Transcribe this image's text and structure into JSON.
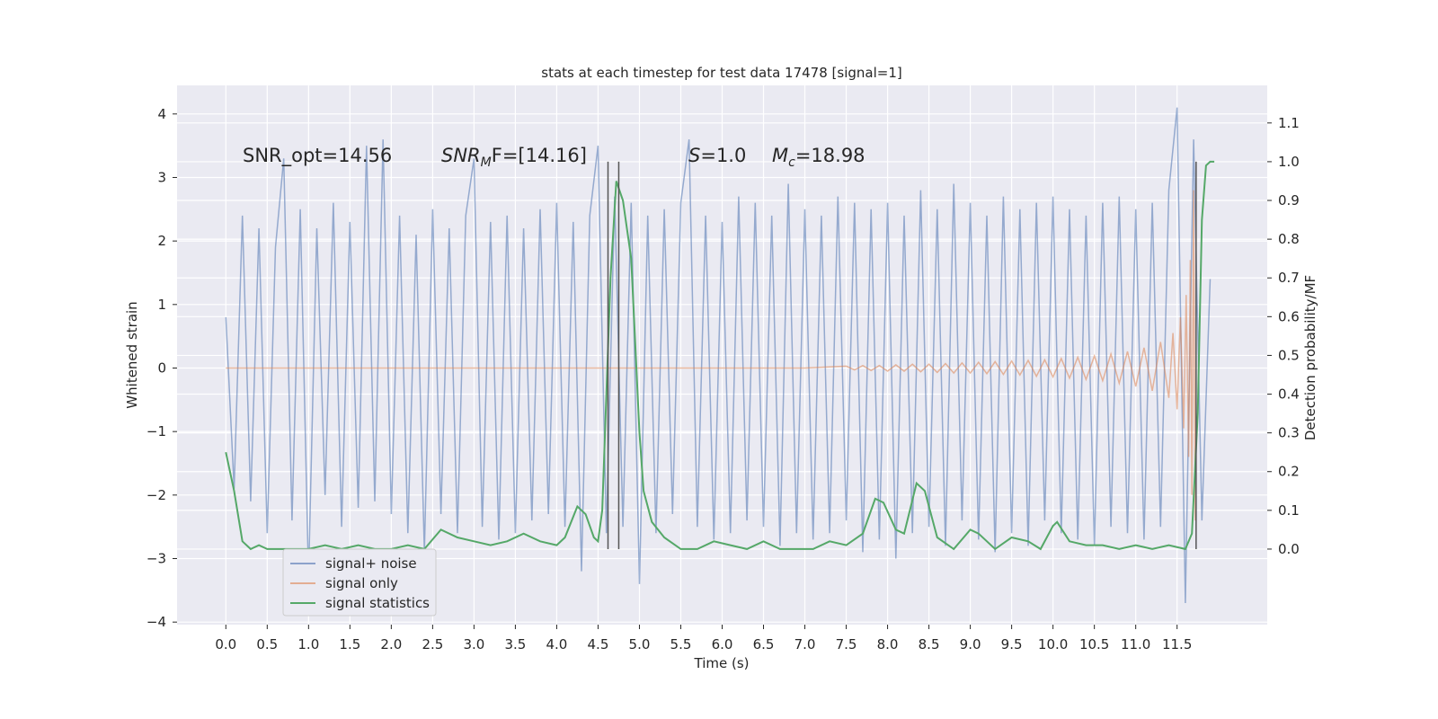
{
  "chart_data": {
    "type": "line",
    "title": "stats at each timestep for test data 17478 [signal=1]",
    "xlabel": "Time (s)",
    "ylabel": "Whitened strain",
    "y2label": "Detection probability/MF",
    "xlim": [
      -0.59,
      12.59
    ],
    "ylim": [
      -4.04,
      4.45
    ],
    "y2lim": [
      -0.195,
      1.197
    ],
    "xticks": [
      {
        "value": 0,
        "label": "0.0"
      },
      0.5,
      {
        "value": 1,
        "label": "1.0"
      },
      1.5,
      {
        "value": 2,
        "label": "2.0"
      },
      2.5,
      {
        "value": 3,
        "label": "3.0"
      },
      3.5,
      {
        "value": 4,
        "label": "4.0"
      },
      4.5,
      {
        "value": 5,
        "label": "5.0"
      },
      5.5,
      {
        "value": 6,
        "label": "6.0"
      },
      6.5,
      {
        "value": 7,
        "label": "7.0"
      },
      7.5,
      {
        "value": 8,
        "label": "8.0"
      },
      8.5,
      {
        "value": 9,
        "label": "9.0"
      },
      9.5,
      {
        "value": 10,
        "label": "10.0"
      },
      10.5,
      {
        "value": 11,
        "label": "11.0"
      },
      11.5
    ],
    "yticks": [
      {
        "value": -4,
        "label": "−4"
      },
      {
        "value": -3,
        "label": "−3"
      },
      {
        "value": -2,
        "label": "−2"
      },
      {
        "value": -1,
        "label": "−1"
      },
      0,
      1,
      2,
      3,
      4
    ],
    "y2ticks": [
      {
        "value": 0,
        "label": "0.0"
      },
      0.1,
      0.2,
      0.3,
      0.4,
      0.5,
      0.6,
      0.7,
      0.8,
      0.9,
      {
        "value": 1,
        "label": "1.0"
      },
      1.1
    ],
    "grid": true,
    "legend": "lower left",
    "series": [
      {
        "name": "signal+ noise",
        "color": "#4c72b0",
        "x": [
          0.0,
          0.1,
          0.2,
          0.3,
          0.4,
          0.5,
          0.6,
          0.7,
          0.8,
          0.9,
          1.0,
          1.1,
          1.2,
          1.3,
          1.4,
          1.5,
          1.6,
          1.7,
          1.8,
          1.9,
          2.0,
          2.1,
          2.2,
          2.3,
          2.4,
          2.5,
          2.6,
          2.7,
          2.8,
          2.9,
          3.0,
          3.1,
          3.2,
          3.3,
          3.4,
          3.5,
          3.6,
          3.7,
          3.8,
          3.9,
          4.0,
          4.1,
          4.2,
          4.3,
          4.4,
          4.5,
          4.6,
          4.7,
          4.8,
          4.9,
          5.0,
          5.1,
          5.2,
          5.3,
          5.4,
          5.5,
          5.6,
          5.7,
          5.8,
          5.9,
          6.0,
          6.1,
          6.2,
          6.3,
          6.4,
          6.5,
          6.6,
          6.7,
          6.8,
          6.9,
          7.0,
          7.1,
          7.2,
          7.3,
          7.4,
          7.5,
          7.6,
          7.7,
          7.8,
          7.9,
          8.0,
          8.1,
          8.2,
          8.3,
          8.4,
          8.5,
          8.6,
          8.7,
          8.8,
          8.9,
          9.0,
          9.1,
          9.2,
          9.3,
          9.4,
          9.5,
          9.6,
          9.7,
          9.8,
          9.9,
          10.0,
          10.1,
          10.2,
          10.3,
          10.4,
          10.5,
          10.6,
          10.7,
          10.8,
          10.9,
          11.0,
          11.1,
          11.2,
          11.3,
          11.4,
          11.5,
          11.6,
          11.7,
          11.8,
          11.9
        ],
        "values": [
          0.8,
          -1.9,
          2.4,
          -2.1,
          2.2,
          -2.6,
          1.9,
          3.3,
          -2.4,
          2.5,
          -3.3,
          2.2,
          -2.0,
          2.6,
          -2.5,
          2.3,
          -2.2,
          3.5,
          -2.1,
          3.6,
          -2.3,
          2.4,
          -2.6,
          2.1,
          -2.9,
          2.5,
          -2.3,
          2.2,
          -2.6,
          2.4,
          3.3,
          -2.5,
          2.3,
          -2.7,
          2.4,
          -2.6,
          2.2,
          -2.4,
          2.5,
          -2.3,
          2.6,
          -2.5,
          2.3,
          -3.2,
          2.4,
          3.5,
          -2.6,
          2.7,
          -2.5,
          2.6,
          -3.4,
          2.4,
          -2.6,
          2.5,
          -2.3,
          2.6,
          3.6,
          -2.5,
          2.4,
          -2.7,
          2.3,
          -2.6,
          2.7,
          -2.4,
          2.6,
          -2.5,
          2.4,
          -2.8,
          2.9,
          -2.6,
          2.5,
          -2.7,
          2.4,
          -2.6,
          2.7,
          -2.4,
          2.6,
          -2.9,
          2.5,
          -2.7,
          2.6,
          -3.0,
          2.4,
          -2.6,
          2.8,
          -2.5,
          2.5,
          -2.8,
          2.9,
          -2.4,
          2.6,
          -2.7,
          2.4,
          -2.9,
          2.7,
          -2.6,
          2.5,
          -2.8,
          2.6,
          -2.4,
          2.7,
          -2.6,
          2.5,
          -2.7,
          2.4,
          -2.8,
          2.6,
          -2.5,
          2.7,
          -2.6,
          2.5,
          -2.7,
          2.6,
          -2.5,
          2.8,
          4.1,
          -3.7,
          3.6,
          -2.4,
          1.4
        ]
      },
      {
        "name": "signal only",
        "color": "#dd8452",
        "x": [
          0,
          7.0,
          7.5,
          7.6,
          7.7,
          7.8,
          7.9,
          8.0,
          8.1,
          8.2,
          8.3,
          8.4,
          8.5,
          8.6,
          8.7,
          8.8,
          8.9,
          9.0,
          9.1,
          9.2,
          9.3,
          9.4,
          9.5,
          9.6,
          9.7,
          9.8,
          9.9,
          10.0,
          10.1,
          10.2,
          10.3,
          10.4,
          10.5,
          10.6,
          10.7,
          10.8,
          10.9,
          11.0,
          11.1,
          11.2,
          11.3,
          11.4,
          11.45,
          11.5,
          11.54,
          11.58,
          11.61,
          11.64,
          11.66,
          11.68,
          11.7,
          11.72
        ],
        "values": [
          0,
          0,
          0.03,
          -0.03,
          0.04,
          -0.04,
          0.04,
          -0.05,
          0.05,
          -0.05,
          0.06,
          -0.06,
          0.06,
          -0.07,
          0.07,
          -0.08,
          0.08,
          -0.08,
          0.09,
          -0.09,
          0.1,
          -0.1,
          0.11,
          -0.11,
          0.12,
          -0.13,
          0.13,
          -0.14,
          0.15,
          -0.16,
          0.17,
          -0.18,
          0.19,
          -0.2,
          0.22,
          -0.24,
          0.26,
          -0.29,
          0.32,
          -0.36,
          0.41,
          -0.47,
          0.55,
          -0.65,
          0.8,
          -0.95,
          1.15,
          -1.4,
          1.7,
          -2.0,
          2.8,
          -2.4
        ]
      },
      {
        "name": "signal statistics",
        "color": "#55a868",
        "axis": "y2",
        "x": [
          0.0,
          0.1,
          0.2,
          0.3,
          0.4,
          0.5,
          0.7,
          1.0,
          1.2,
          1.4,
          1.6,
          1.8,
          2.0,
          2.2,
          2.4,
          2.6,
          2.8,
          3.0,
          3.2,
          3.4,
          3.6,
          3.8,
          4.0,
          4.1,
          4.25,
          4.35,
          4.45,
          4.5,
          4.55,
          4.65,
          4.72,
          4.8,
          4.9,
          5.0,
          5.05,
          5.15,
          5.3,
          5.5,
          5.7,
          5.9,
          6.1,
          6.3,
          6.5,
          6.7,
          6.9,
          7.1,
          7.3,
          7.5,
          7.7,
          7.85,
          7.95,
          8.1,
          8.2,
          8.35,
          8.45,
          8.6,
          8.8,
          9.0,
          9.1,
          9.3,
          9.5,
          9.7,
          9.85,
          10.0,
          10.05,
          10.2,
          10.4,
          10.6,
          10.8,
          11.0,
          11.2,
          11.4,
          11.6,
          11.68,
          11.75,
          11.8,
          11.85,
          11.9,
          11.95
        ],
        "values": [
          0.25,
          0.15,
          0.02,
          0.0,
          0.01,
          0.0,
          0.0,
          0.0,
          0.01,
          0.0,
          0.01,
          0.0,
          0.0,
          0.01,
          0.0,
          0.05,
          0.03,
          0.02,
          0.01,
          0.02,
          0.04,
          0.02,
          0.01,
          0.03,
          0.11,
          0.09,
          0.03,
          0.02,
          0.1,
          0.7,
          0.95,
          0.9,
          0.75,
          0.3,
          0.15,
          0.07,
          0.03,
          0.0,
          0.0,
          0.02,
          0.01,
          0.0,
          0.02,
          0.0,
          0.0,
          0.0,
          0.02,
          0.01,
          0.04,
          0.13,
          0.12,
          0.05,
          0.04,
          0.17,
          0.15,
          0.03,
          0.0,
          0.05,
          0.04,
          0.0,
          0.03,
          0.02,
          0.0,
          0.06,
          0.07,
          0.02,
          0.01,
          0.01,
          0.0,
          0.01,
          0.0,
          0.01,
          0.0,
          0.04,
          0.35,
          0.85,
          0.99,
          1.0,
          1.0
        ]
      }
    ],
    "vlines": {
      "x": [
        4.62,
        4.75,
        11.73
      ],
      "y2span": [
        0,
        1.0
      ],
      "color": "#555555"
    },
    "annotations": [
      {
        "text": "SNR_opt=14.56"
      },
      {
        "italic": "SNR",
        "sub": "M",
        "text": "F=[14.16]"
      },
      {
        "italic": "S",
        "text": "=1.0"
      },
      {
        "italic": "M",
        "sub": "c",
        "text": "=18.98"
      }
    ]
  }
}
